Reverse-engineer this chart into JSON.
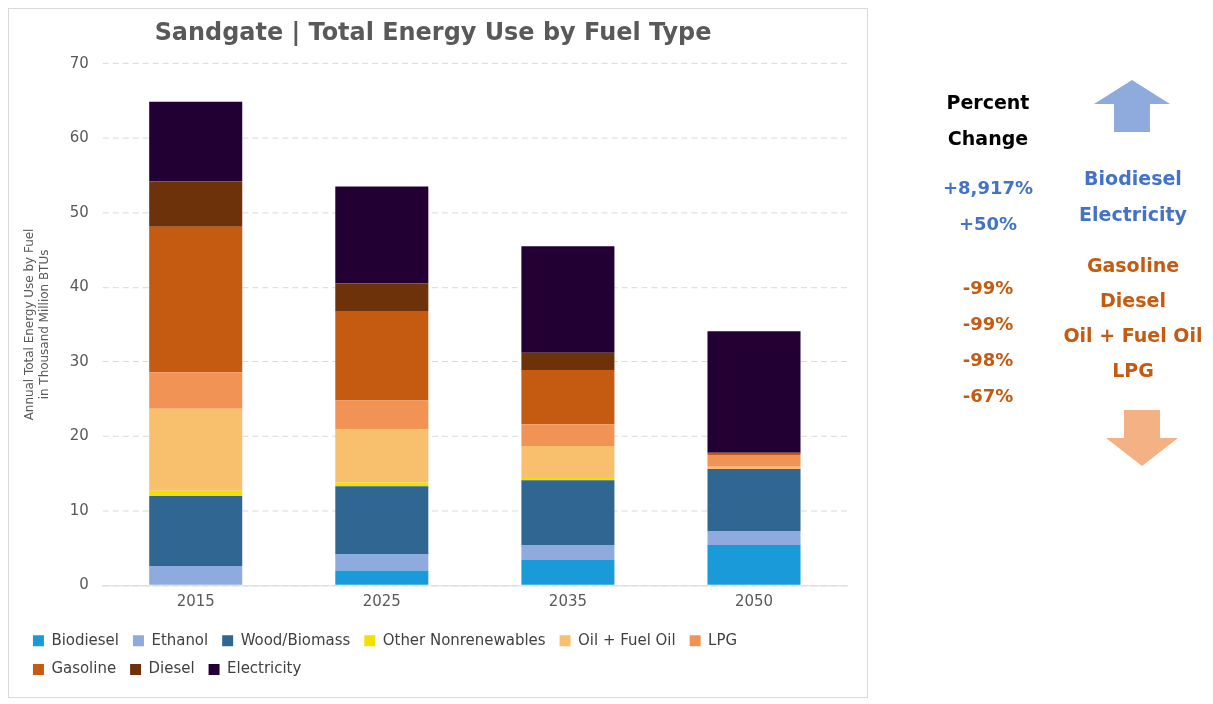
{
  "chart_data": {
    "type": "bar",
    "title": "Sandgate | Total Energy Use by Fuel Type",
    "ylabel": "Annual Total Energy Use by Fuel\nin Thousand Million BTUs",
    "categories": [
      "2015",
      "2025",
      "2035",
      "2050"
    ],
    "stacked": true,
    "series": [
      {
        "name": "Biodiesel",
        "color": "#1a9ad9",
        "values": [
          0,
          2.0,
          3.4,
          5.4
        ]
      },
      {
        "name": "Ethanol",
        "color": "#8faadc",
        "values": [
          2.6,
          2.2,
          2.0,
          1.9
        ]
      },
      {
        "name": "Wood/Biomass",
        "color": "#2f6792",
        "values": [
          9.4,
          9.1,
          8.7,
          8.3
        ]
      },
      {
        "name": "Other Nonrenewables",
        "color": "#f2e000",
        "values": [
          0.7,
          0.5,
          0.3,
          0
        ]
      },
      {
        "name": "Oil + Fuel Oil",
        "color": "#f8c06d",
        "values": [
          11.0,
          7.1,
          4.3,
          0.3
        ]
      },
      {
        "name": "LPG",
        "color": "#f09354",
        "values": [
          4.9,
          3.9,
          2.9,
          1.6
        ]
      },
      {
        "name": "Gasoline",
        "color": "#c55a11",
        "values": [
          19.5,
          12.0,
          7.3,
          0.3
        ]
      },
      {
        "name": "Diesel",
        "color": "#6d3209",
        "values": [
          6.1,
          3.7,
          2.3,
          0
        ]
      },
      {
        "name": "Electricity",
        "color": "#220033",
        "values": [
          10.7,
          13.0,
          14.3,
          16.3
        ]
      }
    ],
    "ylim": [
      0,
      70
    ],
    "yticks": [
      0,
      10,
      20,
      30,
      40,
      50,
      60,
      70
    ],
    "grid": "y",
    "legend": "bottom",
    "annotations": [
      "Percent Change",
      "+8,917%",
      "+50%",
      "Biodiesel",
      "Electricity",
      "-99%",
      "-99%",
      "-98%",
      "-67%",
      "Gasoline",
      "Diesel",
      "Oil + Fuel Oil",
      "LPG"
    ]
  }
}
